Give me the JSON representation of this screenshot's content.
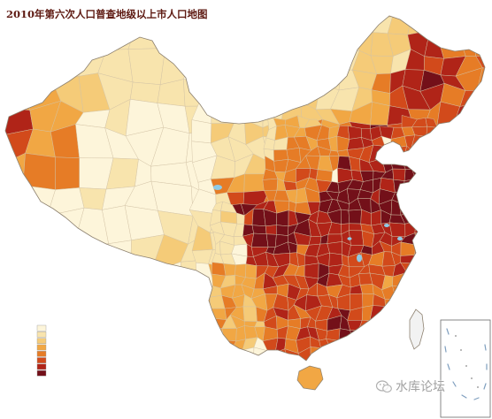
{
  "title": "2010年第六次人口普查地级以上市人口地图",
  "legend": {
    "swatches": [
      "#fdf5da",
      "#f8e4ad",
      "#f5cb78",
      "#f1a744",
      "#e67c26",
      "#d24a1b",
      "#b02418",
      "#731019"
    ]
  },
  "map": {
    "outline_color": "#8d8170",
    "boundary_color": "#d2c3a6",
    "lake_color": "#8fcbe6",
    "no_data_color": "#f2f2f2",
    "inset_line_color": "#7f9fbf"
  },
  "watermark": {
    "icon": "wechat-icon",
    "text": "水库论坛"
  }
}
